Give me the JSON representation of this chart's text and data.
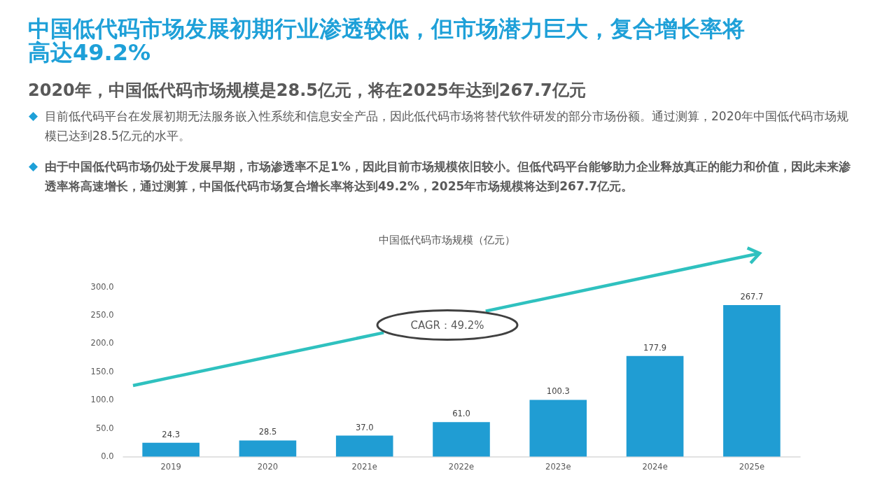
{
  "chart_data": {
    "type": "bar",
    "title": "中国低代码市场发展初期行业渗透较低，但市场潜力巨大，复合增长率将高达49.2%",
    "subtitle": "2020年，中国低代码市场规模是28.5亿元，将在2025年达到267.7亿元",
    "annotations": [
      "目前低代码平台在发展初期无法服务嵌入性系统和信息安全产品，因此低代码市场将替代软件研发的部分市场份额。通过测算，2020年中国低代码市场规模已达到28.5亿元的水平。",
      "由于中国低代码市场仍处于发展早期，市场渗透率不足1%，因此目前市场规模依旧较小。但低代码平台能够助力企业释放真正的能力和价值，因此未来渗透率将高速增长，通过测算，中国低代码市场复合增长率将达到49.2%，2025年市场规模将达到267.7亿元。",
      "中国低代码市场规模（亿元）",
      "CAGR：49.2%"
    ],
    "categories": [
      "2019",
      "2020",
      "2021e",
      "2022e",
      "2023e",
      "2024e",
      "2025e"
    ],
    "values": [
      24.3,
      28.5,
      37.0,
      61.0,
      100.3,
      177.9,
      267.7
    ],
    "value_labels": [
      "24.3",
      "28.5",
      "37.0",
      "61.0",
      "100.3",
      "177.9",
      "267.7"
    ],
    "color": "#209dd3",
    "ylim": [
      0,
      300
    ],
    "yticks": [
      {
        "value": 0,
        "label": "0.0"
      },
      {
        "value": 50,
        "label": "50.0"
      },
      {
        "value": 100,
        "label": "100.0"
      },
      {
        "value": 150,
        "label": "150.0"
      },
      {
        "value": 200,
        "label": "200.0"
      },
      {
        "value": 250,
        "label": "250.0"
      },
      {
        "value": 300,
        "label": "300.0"
      }
    ]
  }
}
